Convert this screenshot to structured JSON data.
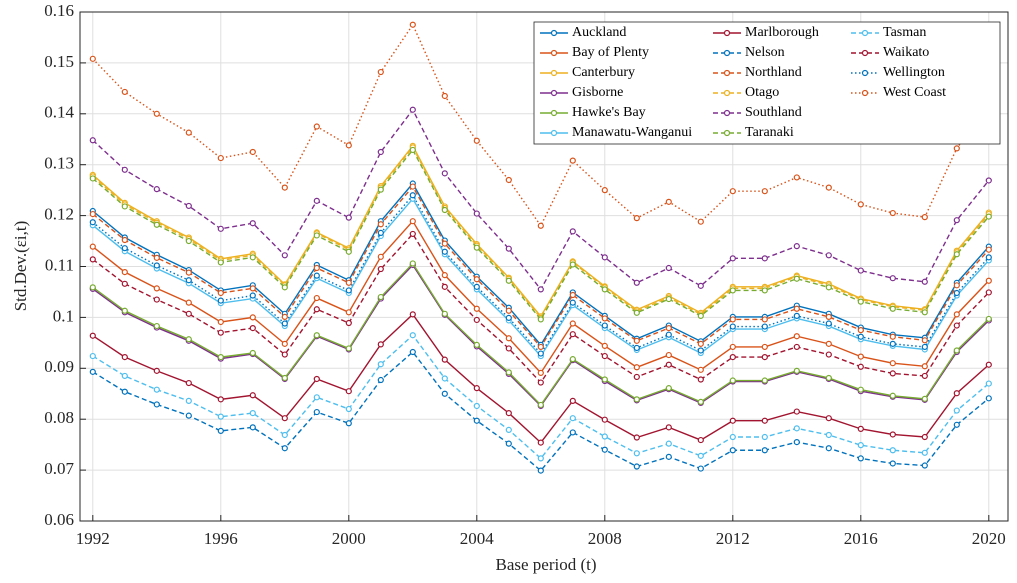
{
  "chart_data": {
    "type": "line",
    "xlabel": "Base period (t)",
    "ylabel": "Std.Dev.(εi,t)",
    "x": [
      1992,
      1993,
      1994,
      1995,
      1996,
      1997,
      1998,
      1999,
      2000,
      2001,
      2002,
      2003,
      2004,
      2005,
      2006,
      2007,
      2008,
      2009,
      2010,
      2011,
      2012,
      2013,
      2014,
      2015,
      2016,
      2017,
      2018,
      2019,
      2020
    ],
    "xlim": [
      1991.6,
      2020.6
    ],
    "xticks": [
      1992,
      1996,
      2000,
      2004,
      2008,
      2012,
      2016,
      2020
    ],
    "ylim": [
      0.06,
      0.16
    ],
    "yticks": [
      0.06,
      0.07,
      0.08,
      0.09,
      0.1,
      0.11,
      0.12,
      0.13,
      0.14,
      0.15,
      0.16
    ],
    "grid": true,
    "legend": "upper right",
    "series": [
      {
        "name": "Auckland",
        "color": "#0072BD",
        "dash": "solid",
        "values": [
          0.1209,
          0.1157,
          0.1123,
          0.1093,
          0.1053,
          0.1063,
          0.1007,
          0.1103,
          0.1073,
          0.1189,
          0.1263,
          0.1151,
          0.108,
          0.1019,
          0.0946,
          0.1049,
          0.1003,
          0.0958,
          0.0984,
          0.0953,
          0.1001,
          0.1001,
          0.1023,
          0.1007,
          0.098,
          0.0966,
          0.096,
          0.1068,
          0.1139
        ]
      },
      {
        "name": "Bay of Plenty",
        "color": "#D95319",
        "dash": "solid",
        "values": [
          0.1139,
          0.1089,
          0.1057,
          0.1029,
          0.0991,
          0.1,
          0.0948,
          0.1038,
          0.101,
          0.1119,
          0.1189,
          0.1083,
          0.1017,
          0.0959,
          0.0891,
          0.0988,
          0.0944,
          0.0902,
          0.0926,
          0.0897,
          0.0942,
          0.0942,
          0.0963,
          0.0948,
          0.0923,
          0.091,
          0.0904,
          0.1006,
          0.1072
        ]
      },
      {
        "name": "Canterbury",
        "color": "#EDB120",
        "dash": "solid",
        "values": [
          0.128,
          0.1225,
          0.1189,
          0.1157,
          0.1115,
          0.1125,
          0.1065,
          0.1167,
          0.1136,
          0.1258,
          0.1337,
          0.1218,
          0.1144,
          0.1078,
          0.1002,
          0.111,
          0.1061,
          0.1015,
          0.1042,
          0.1009,
          0.106,
          0.106,
          0.1082,
          0.1066,
          0.1037,
          0.1023,
          0.1016,
          0.1131,
          0.1206
        ]
      },
      {
        "name": "Gisborne",
        "color": "#7E2F8E",
        "dash": "solid",
        "values": [
          0.1056,
          0.101,
          0.098,
          0.0954,
          0.0919,
          0.0928,
          0.0879,
          0.0963,
          0.0937,
          0.1037,
          0.1103,
          0.1005,
          0.0943,
          0.0889,
          0.0826,
          0.0916,
          0.0875,
          0.0837,
          0.0859,
          0.0832,
          0.0874,
          0.0874,
          0.0893,
          0.0879,
          0.0855,
          0.0844,
          0.0838,
          0.0932,
          0.0994
        ]
      },
      {
        "name": "Hawke's Bay",
        "color": "#77AC30",
        "dash": "solid",
        "values": [
          0.1059,
          0.1013,
          0.0983,
          0.0957,
          0.0922,
          0.093,
          0.0881,
          0.0965,
          0.0939,
          0.104,
          0.1106,
          0.1007,
          0.0946,
          0.0892,
          0.0828,
          0.0918,
          0.0878,
          0.0839,
          0.0861,
          0.0834,
          0.0876,
          0.0876,
          0.0895,
          0.0881,
          0.0858,
          0.0846,
          0.084,
          0.0935,
          0.0997
        ]
      },
      {
        "name": "Manawatu-Wanganui",
        "color": "#4DBEEE",
        "dash": "solid",
        "values": [
          0.1181,
          0.113,
          0.1096,
          0.1067,
          0.1028,
          0.1037,
          0.0983,
          0.1077,
          0.1048,
          0.116,
          0.1233,
          0.1124,
          0.1055,
          0.0994,
          0.0924,
          0.1024,
          0.0979,
          0.0936,
          0.0961,
          0.093,
          0.0977,
          0.0977,
          0.0998,
          0.0983,
          0.0957,
          0.0944,
          0.0937,
          0.1043,
          0.1112
        ]
      },
      {
        "name": "Marlborough",
        "color": "#A2142F",
        "dash": "solid",
        "values": [
          0.0964,
          0.0922,
          0.0895,
          0.0871,
          0.0839,
          0.0847,
          0.0802,
          0.0879,
          0.0855,
          0.0947,
          0.1006,
          0.0917,
          0.0861,
          0.0812,
          0.0754,
          0.0836,
          0.0799,
          0.0764,
          0.0784,
          0.0759,
          0.0797,
          0.0797,
          0.0815,
          0.0802,
          0.0781,
          0.077,
          0.0765,
          0.0851,
          0.0907
        ]
      },
      {
        "name": "Nelson",
        "color": "#0072BD",
        "dash": "dashed",
        "values": [
          0.0893,
          0.0854,
          0.0829,
          0.0807,
          0.0777,
          0.0784,
          0.0743,
          0.0814,
          0.0792,
          0.0877,
          0.0932,
          0.085,
          0.0797,
          0.0752,
          0.0699,
          0.0774,
          0.074,
          0.0707,
          0.0726,
          0.0703,
          0.0739,
          0.0739,
          0.0755,
          0.0743,
          0.0723,
          0.0713,
          0.0709,
          0.0789,
          0.0841
        ]
      },
      {
        "name": "Northland",
        "color": "#D95319",
        "dash": "dashed",
        "values": [
          0.1203,
          0.1152,
          0.1117,
          0.1088,
          0.1048,
          0.1057,
          0.1001,
          0.1097,
          0.1068,
          0.1183,
          0.1257,
          0.1145,
          0.1075,
          0.1013,
          0.0942,
          0.1044,
          0.0998,
          0.0954,
          0.0979,
          0.0948,
          0.0996,
          0.0996,
          0.1017,
          0.1001,
          0.0975,
          0.0962,
          0.0955,
          0.1063,
          0.1133
        ]
      },
      {
        "name": "Otago",
        "color": "#EDB120",
        "dash": "dashed",
        "values": [
          0.1277,
          0.1222,
          0.1186,
          0.1154,
          0.1112,
          0.1122,
          0.1063,
          0.1165,
          0.1133,
          0.1255,
          0.1334,
          0.1215,
          0.1141,
          0.1076,
          0.0999,
          0.1108,
          0.1059,
          0.1012,
          0.1039,
          0.1006,
          0.1057,
          0.1057,
          0.108,
          0.1063,
          0.1035,
          0.1021,
          0.1014,
          0.1128,
          0.1203
        ]
      },
      {
        "name": "Southland",
        "color": "#7E2F8E",
        "dash": "dashed",
        "values": [
          0.1348,
          0.129,
          0.1252,
          0.1219,
          0.1174,
          0.1185,
          0.1122,
          0.1229,
          0.1196,
          0.1325,
          0.1408,
          0.1283,
          0.1204,
          0.1135,
          0.1055,
          0.1169,
          0.1118,
          0.1068,
          0.1097,
          0.1062,
          0.1116,
          0.1116,
          0.114,
          0.1122,
          0.1092,
          0.1077,
          0.107,
          0.1191,
          0.1269
        ]
      },
      {
        "name": "Taranaki",
        "color": "#77AC30",
        "dash": "dashed",
        "values": [
          0.1273,
          0.1218,
          0.1182,
          0.115,
          0.1108,
          0.1118,
          0.1059,
          0.1161,
          0.1129,
          0.1251,
          0.1329,
          0.1211,
          0.1137,
          0.1072,
          0.0996,
          0.1104,
          0.1055,
          0.1009,
          0.1036,
          0.1003,
          0.1053,
          0.1053,
          0.1076,
          0.1059,
          0.1031,
          0.1017,
          0.101,
          0.1124,
          0.1198
        ]
      },
      {
        "name": "Tasman",
        "color": "#4DBEEE",
        "dash": "dashed",
        "values": [
          0.0924,
          0.0885,
          0.0858,
          0.0836,
          0.0805,
          0.0812,
          0.0769,
          0.0843,
          0.082,
          0.0908,
          0.0965,
          0.088,
          0.0826,
          0.0779,
          0.0723,
          0.0802,
          0.0766,
          0.0733,
          0.0752,
          0.0728,
          0.0765,
          0.0765,
          0.0782,
          0.0769,
          0.0749,
          0.0739,
          0.0734,
          0.0817,
          0.087
        ]
      },
      {
        "name": "Waikato",
        "color": "#A2142F",
        "dash": "dashed",
        "values": [
          0.1114,
          0.1066,
          0.1035,
          0.1007,
          0.097,
          0.0979,
          0.0927,
          0.1016,
          0.0989,
          0.1095,
          0.1164,
          0.106,
          0.0995,
          0.0939,
          0.0872,
          0.0967,
          0.0924,
          0.0883,
          0.0907,
          0.0878,
          0.0922,
          0.0922,
          0.0942,
          0.0927,
          0.0903,
          0.089,
          0.0885,
          0.0984,
          0.1049
        ]
      },
      {
        "name": "Wellington",
        "color": "#0072BD",
        "dash": "dotted",
        "values": [
          0.1187,
          0.1136,
          0.1102,
          0.1073,
          0.1033,
          0.1043,
          0.0988,
          0.1082,
          0.1053,
          0.1166,
          0.124,
          0.1129,
          0.106,
          0.0999,
          0.0929,
          0.1029,
          0.0984,
          0.094,
          0.0966,
          0.0935,
          0.0982,
          0.0982,
          0.1003,
          0.0988,
          0.0962,
          0.0948,
          0.0942,
          0.1048,
          0.1118
        ]
      },
      {
        "name": "West Coast",
        "color": "#D95319",
        "dash": "dotted",
        "values": [
          0.1508,
          0.1443,
          0.14,
          0.1363,
          0.1313,
          0.1325,
          0.1255,
          0.1375,
          0.1338,
          0.1482,
          0.1575,
          0.1435,
          0.1347,
          0.127,
          0.118,
          0.1308,
          0.125,
          0.1195,
          0.1227,
          0.1188,
          0.1248,
          0.1248,
          0.1275,
          0.1255,
          0.1222,
          0.1205,
          0.1197,
          0.1332,
          0.142
        ]
      }
    ]
  }
}
